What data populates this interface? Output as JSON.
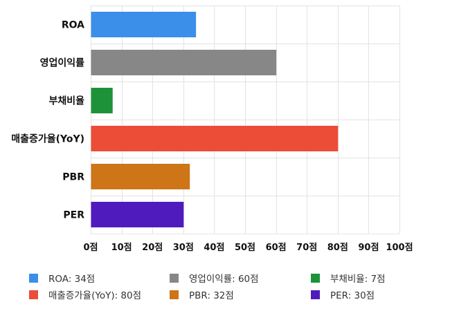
{
  "chart_data": {
    "type": "bar",
    "orientation": "horizontal",
    "categories": [
      "ROA",
      "영업이익률",
      "부채비율",
      "매출증가율(YoY)",
      "PBR",
      "PER"
    ],
    "values": [
      34,
      60,
      7,
      80,
      32,
      30
    ],
    "colors": [
      "#3b8fe8",
      "#878787",
      "#1d9239",
      "#ec4d37",
      "#cd7517",
      "#4f1bbd"
    ],
    "xlim": [
      0,
      100
    ],
    "x_ticks": [
      "0점",
      "10점",
      "20점",
      "30점",
      "40점",
      "50점",
      "60점",
      "70점",
      "80점",
      "90점",
      "100점"
    ],
    "grid": true,
    "legend_position": "bottom",
    "legend": [
      {
        "label": "ROA: 34점",
        "color": "#3b8fe8"
      },
      {
        "label": "영업이익률: 60점",
        "color": "#878787"
      },
      {
        "label": "부채비율: 7점",
        "color": "#1d9239"
      },
      {
        "label": "매출증가율(YoY): 80점",
        "color": "#ec4d37"
      },
      {
        "label": "PBR: 32점",
        "color": "#cd7517"
      },
      {
        "label": "PER: 30점",
        "color": "#4f1bbd"
      }
    ]
  }
}
